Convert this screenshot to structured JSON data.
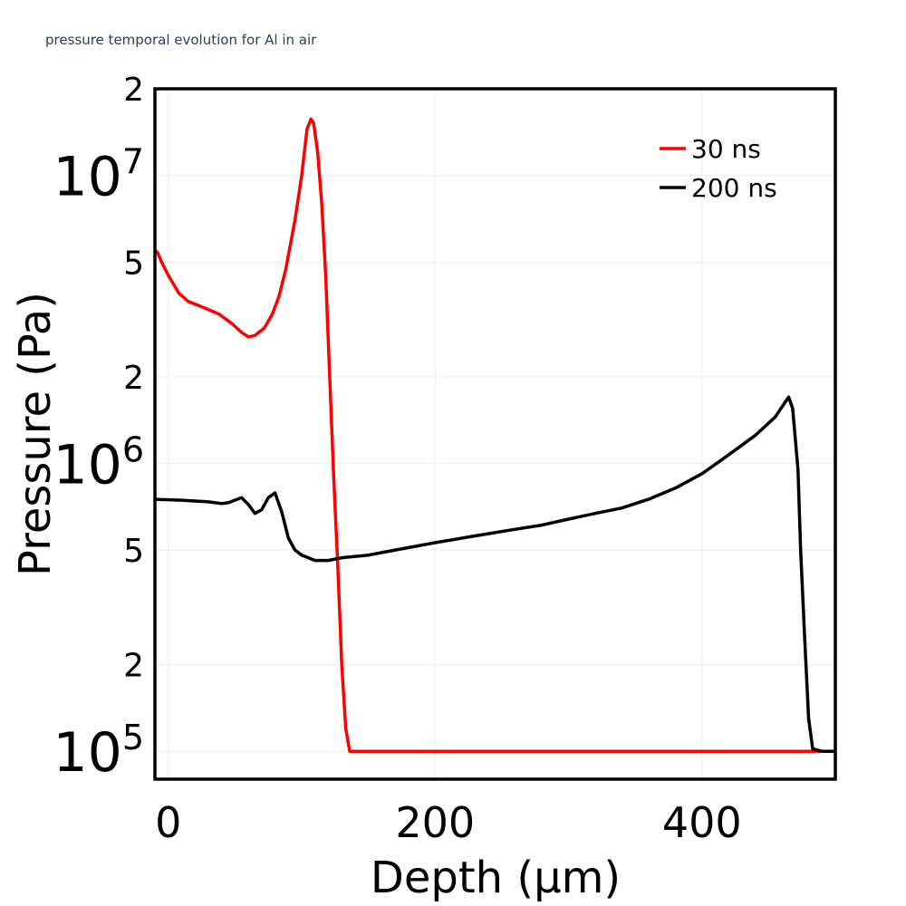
{
  "chart_data": {
    "type": "line",
    "title": "pressure temporal evolution for Al in air",
    "xlabel": "Depth (μm)",
    "ylabel": "Pressure (Pa)",
    "xlim": [
      -10,
      500
    ],
    "ylim": [
      80000,
      20000000
    ],
    "yscale": "log",
    "grid": true,
    "legend_position": "top-right",
    "x_ticks": [
      {
        "value": 0,
        "label": "0"
      },
      {
        "value": 200,
        "label": "200"
      },
      {
        "value": 400,
        "label": "400"
      }
    ],
    "y_major_ticks": [
      {
        "value": 100000,
        "base": "10",
        "exp": "5"
      },
      {
        "value": 1000000,
        "base": "10",
        "exp": "6"
      },
      {
        "value": 10000000,
        "base": "10",
        "exp": "7"
      }
    ],
    "y_minor_ticks": [
      {
        "value": 200000,
        "label": "2"
      },
      {
        "value": 500000,
        "label": "5"
      },
      {
        "value": 2000000,
        "label": "2"
      },
      {
        "value": 5000000,
        "label": "5"
      },
      {
        "value": 20000000,
        "label": "2"
      }
    ],
    "series": [
      {
        "name": "30 ns",
        "color": "#ff0000",
        "x": [
          -10,
          -8,
          -5,
          0,
          8,
          15,
          25,
          38,
          48,
          55,
          60,
          65,
          72,
          78,
          83,
          88,
          95,
          100,
          104,
          107,
          109,
          112,
          115,
          118,
          121,
          124,
          127,
          130,
          133,
          136,
          500
        ],
        "y": [
          5500000,
          5400000,
          5000000,
          4500000,
          3900000,
          3650000,
          3500000,
          3300000,
          3050000,
          2850000,
          2750000,
          2780000,
          2950000,
          3300000,
          3800000,
          4700000,
          7000000,
          10000000,
          14500000,
          15700000,
          15200000,
          12000000,
          8000000,
          4500000,
          2000000,
          900000,
          450000,
          200000,
          120000,
          100000,
          100000
        ]
      },
      {
        "name": "200 ns",
        "color": "#000000",
        "x": [
          -10,
          10,
          20,
          30,
          40,
          45,
          55,
          60,
          65,
          70,
          75,
          80,
          85,
          90,
          95,
          100,
          110,
          120,
          130,
          150,
          170,
          200,
          230,
          260,
          280,
          300,
          320,
          340,
          360,
          380,
          400,
          420,
          440,
          455,
          462,
          465,
          468,
          472,
          474,
          477,
          480,
          483,
          490,
          500
        ],
        "y": [
          750000,
          745000,
          740000,
          735000,
          725000,
          730000,
          760000,
          720000,
          670000,
          690000,
          760000,
          790000,
          680000,
          550000,
          500000,
          480000,
          460000,
          460000,
          470000,
          480000,
          500000,
          530000,
          560000,
          590000,
          610000,
          640000,
          670000,
          700000,
          750000,
          820000,
          920000,
          1070000,
          1250000,
          1450000,
          1620000,
          1700000,
          1550000,
          950000,
          500000,
          250000,
          130000,
          102000,
          100000,
          100000
        ]
      }
    ]
  }
}
